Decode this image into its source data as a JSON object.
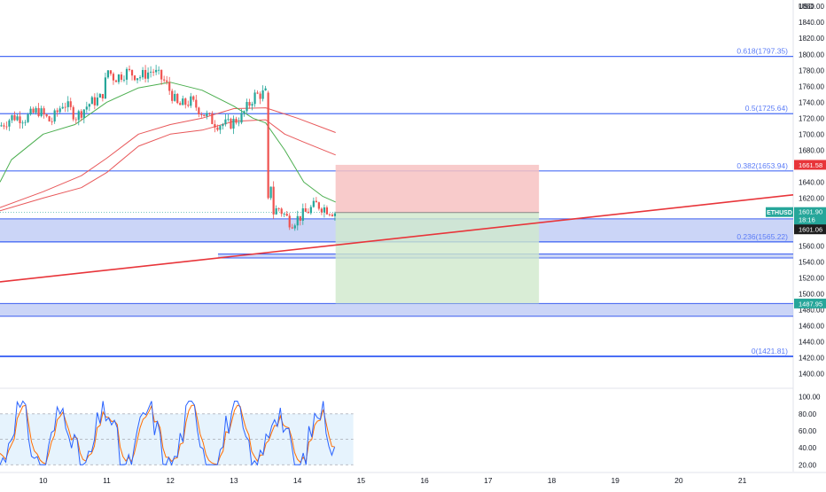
{
  "chart_data": {
    "type": "line",
    "title": "",
    "currency_label": "USD",
    "colors": {
      "candle_up": "#26a69a",
      "candle_down": "#ef5350",
      "zone_fill": "#b9c7f4",
      "zone_border": "#3d5ff0",
      "fib_line": "#4a6ef5",
      "fib_label": "#5b7cf7",
      "trendline": "#e8353a",
      "ma_green": "#4caf50",
      "ma_red": "#e8585a",
      "risk_fill": "#f7c2c2",
      "reward_fill": "#cfe9cc",
      "stoch_k": "#2962ff",
      "stoch_d": "#ff6d00"
    },
    "price_axis": {
      "ylim": [
        1384,
        1868
      ],
      "ticks": [
        1860,
        1840,
        1820,
        1800,
        1780,
        1760,
        1740,
        1720,
        1700,
        1680,
        1660,
        1640,
        1620,
        1600,
        1580,
        1560,
        1540,
        1520,
        1500,
        1480,
        1460,
        1440,
        1420,
        1400
      ],
      "tick_labels": [
        "1860.00",
        "1840.00",
        "1820.00",
        "1800.00",
        "1780.00",
        "1760.00",
        "1740.00",
        "1720.00",
        "1700.00",
        "1680.00",
        "1660.00",
        "1640.00",
        "1620.00",
        "1600.00",
        "1580.00",
        "1560.00",
        "1540.00",
        "1520.00",
        "1500.00",
        "1480.00",
        "1460.00",
        "1440.00",
        "1420.00",
        "1400.00"
      ]
    },
    "time_axis": {
      "xlim": [
        9.32,
        21.8
      ],
      "ticks": [
        10,
        11,
        12,
        13,
        14,
        15,
        16,
        17,
        18,
        19,
        20,
        21
      ],
      "tick_labels": [
        "10",
        "11",
        "12",
        "13",
        "14",
        "15",
        "16",
        "17",
        "18",
        "19",
        "20",
        "21"
      ]
    },
    "fib_levels": [
      {
        "ratio": 0.618,
        "price": 1797.35,
        "label": "0.618(1797.35)"
      },
      {
        "ratio": 0.5,
        "price": 1725.64,
        "label": "0.5(1725.64)"
      },
      {
        "ratio": 0.382,
        "price": 1653.94,
        "label": "0.382(1653.94)"
      },
      {
        "ratio": 0.236,
        "price": 1565.22,
        "label": "0.236(1565.22)"
      },
      {
        "ratio": 0,
        "price": 1421.81,
        "label": "0(1421.81)"
      }
    ],
    "zones": [
      {
        "from": 1565,
        "to": 1594,
        "x_start": 9.32
      },
      {
        "from": 1545,
        "to": 1550,
        "x_start": 12.75
      },
      {
        "from": 1472,
        "to": 1488,
        "x_start": 9.32
      }
    ],
    "trendline": {
      "x": [
        9.32,
        21.8
      ],
      "y": [
        1515,
        1624
      ]
    },
    "position": {
      "x_start": 14.6,
      "x_end": 17.8,
      "entry": 1601.9,
      "stop": 1661.58,
      "target": 1487.95
    },
    "price_badges": [
      {
        "symbol": "ETHUSD",
        "price": "1601.90",
        "countdown": "18:16",
        "color": "#26a69a"
      },
      {
        "label": "1601.06",
        "price": 1601.06,
        "color": "#1e1e1e"
      },
      {
        "label": "1661.58",
        "price": 1661.58,
        "color": "#e8353a"
      },
      {
        "label": "1487.95",
        "price": 1487.95,
        "color": "#26a69a"
      }
    ],
    "candles_x": [
      9.32,
      9.52,
      9.72,
      9.92,
      10.12,
      10.32,
      10.52,
      10.72,
      10.92,
      11.02,
      11.12,
      11.32,
      11.52,
      11.72,
      11.92,
      12.02,
      12.12,
      12.32,
      12.52,
      12.72,
      12.92,
      13.12,
      13.32,
      13.52,
      13.6,
      13.7,
      13.9,
      14.1,
      14.3,
      14.5,
      14.6
    ],
    "candles_close": [
      1710,
      1722,
      1720,
      1730,
      1715,
      1740,
      1722,
      1738,
      1746,
      1780,
      1770,
      1778,
      1772,
      1780,
      1765,
      1750,
      1735,
      1741,
      1726,
      1713,
      1712,
      1722,
      1748,
      1752,
      1600,
      1608,
      1589,
      1600,
      1612,
      1605,
      1601.9
    ],
    "ma_green_x": [
      9.32,
      9.5,
      10,
      10.5,
      11,
      11.5,
      12,
      12.5,
      13,
      13.3,
      13.5,
      13.8,
      14.1,
      14.4,
      14.6
    ],
    "ma_green_y": [
      1640,
      1668,
      1700,
      1712,
      1740,
      1758,
      1765,
      1755,
      1735,
      1720,
      1714,
      1680,
      1640,
      1622,
      1615
    ],
    "ma_red1_x": [
      9.32,
      10,
      10.6,
      11,
      11.5,
      12,
      12.5,
      13,
      13.5,
      14,
      14.6
    ],
    "ma_red1_y": [
      1608,
      1628,
      1648,
      1670,
      1700,
      1712,
      1720,
      1732,
      1733,
      1720,
      1702
    ],
    "ma_red2_x": [
      9.32,
      10,
      10.6,
      11,
      11.5,
      12,
      12.5,
      13,
      13.5,
      13.8,
      14.1,
      14.6
    ],
    "ma_red2_y": [
      1604,
      1620,
      1633,
      1652,
      1685,
      1700,
      1705,
      1716,
      1718,
      1700,
      1690,
      1674
    ],
    "stochastic": {
      "ylim": [
        12,
        108
      ],
      "ticks": [
        100,
        80,
        60,
        40,
        20
      ],
      "tick_labels": [
        "100.00",
        "80.00",
        "60.00",
        "40.00",
        "20.00"
      ],
      "band": [
        20,
        80
      ],
      "midline": 50
    }
  }
}
